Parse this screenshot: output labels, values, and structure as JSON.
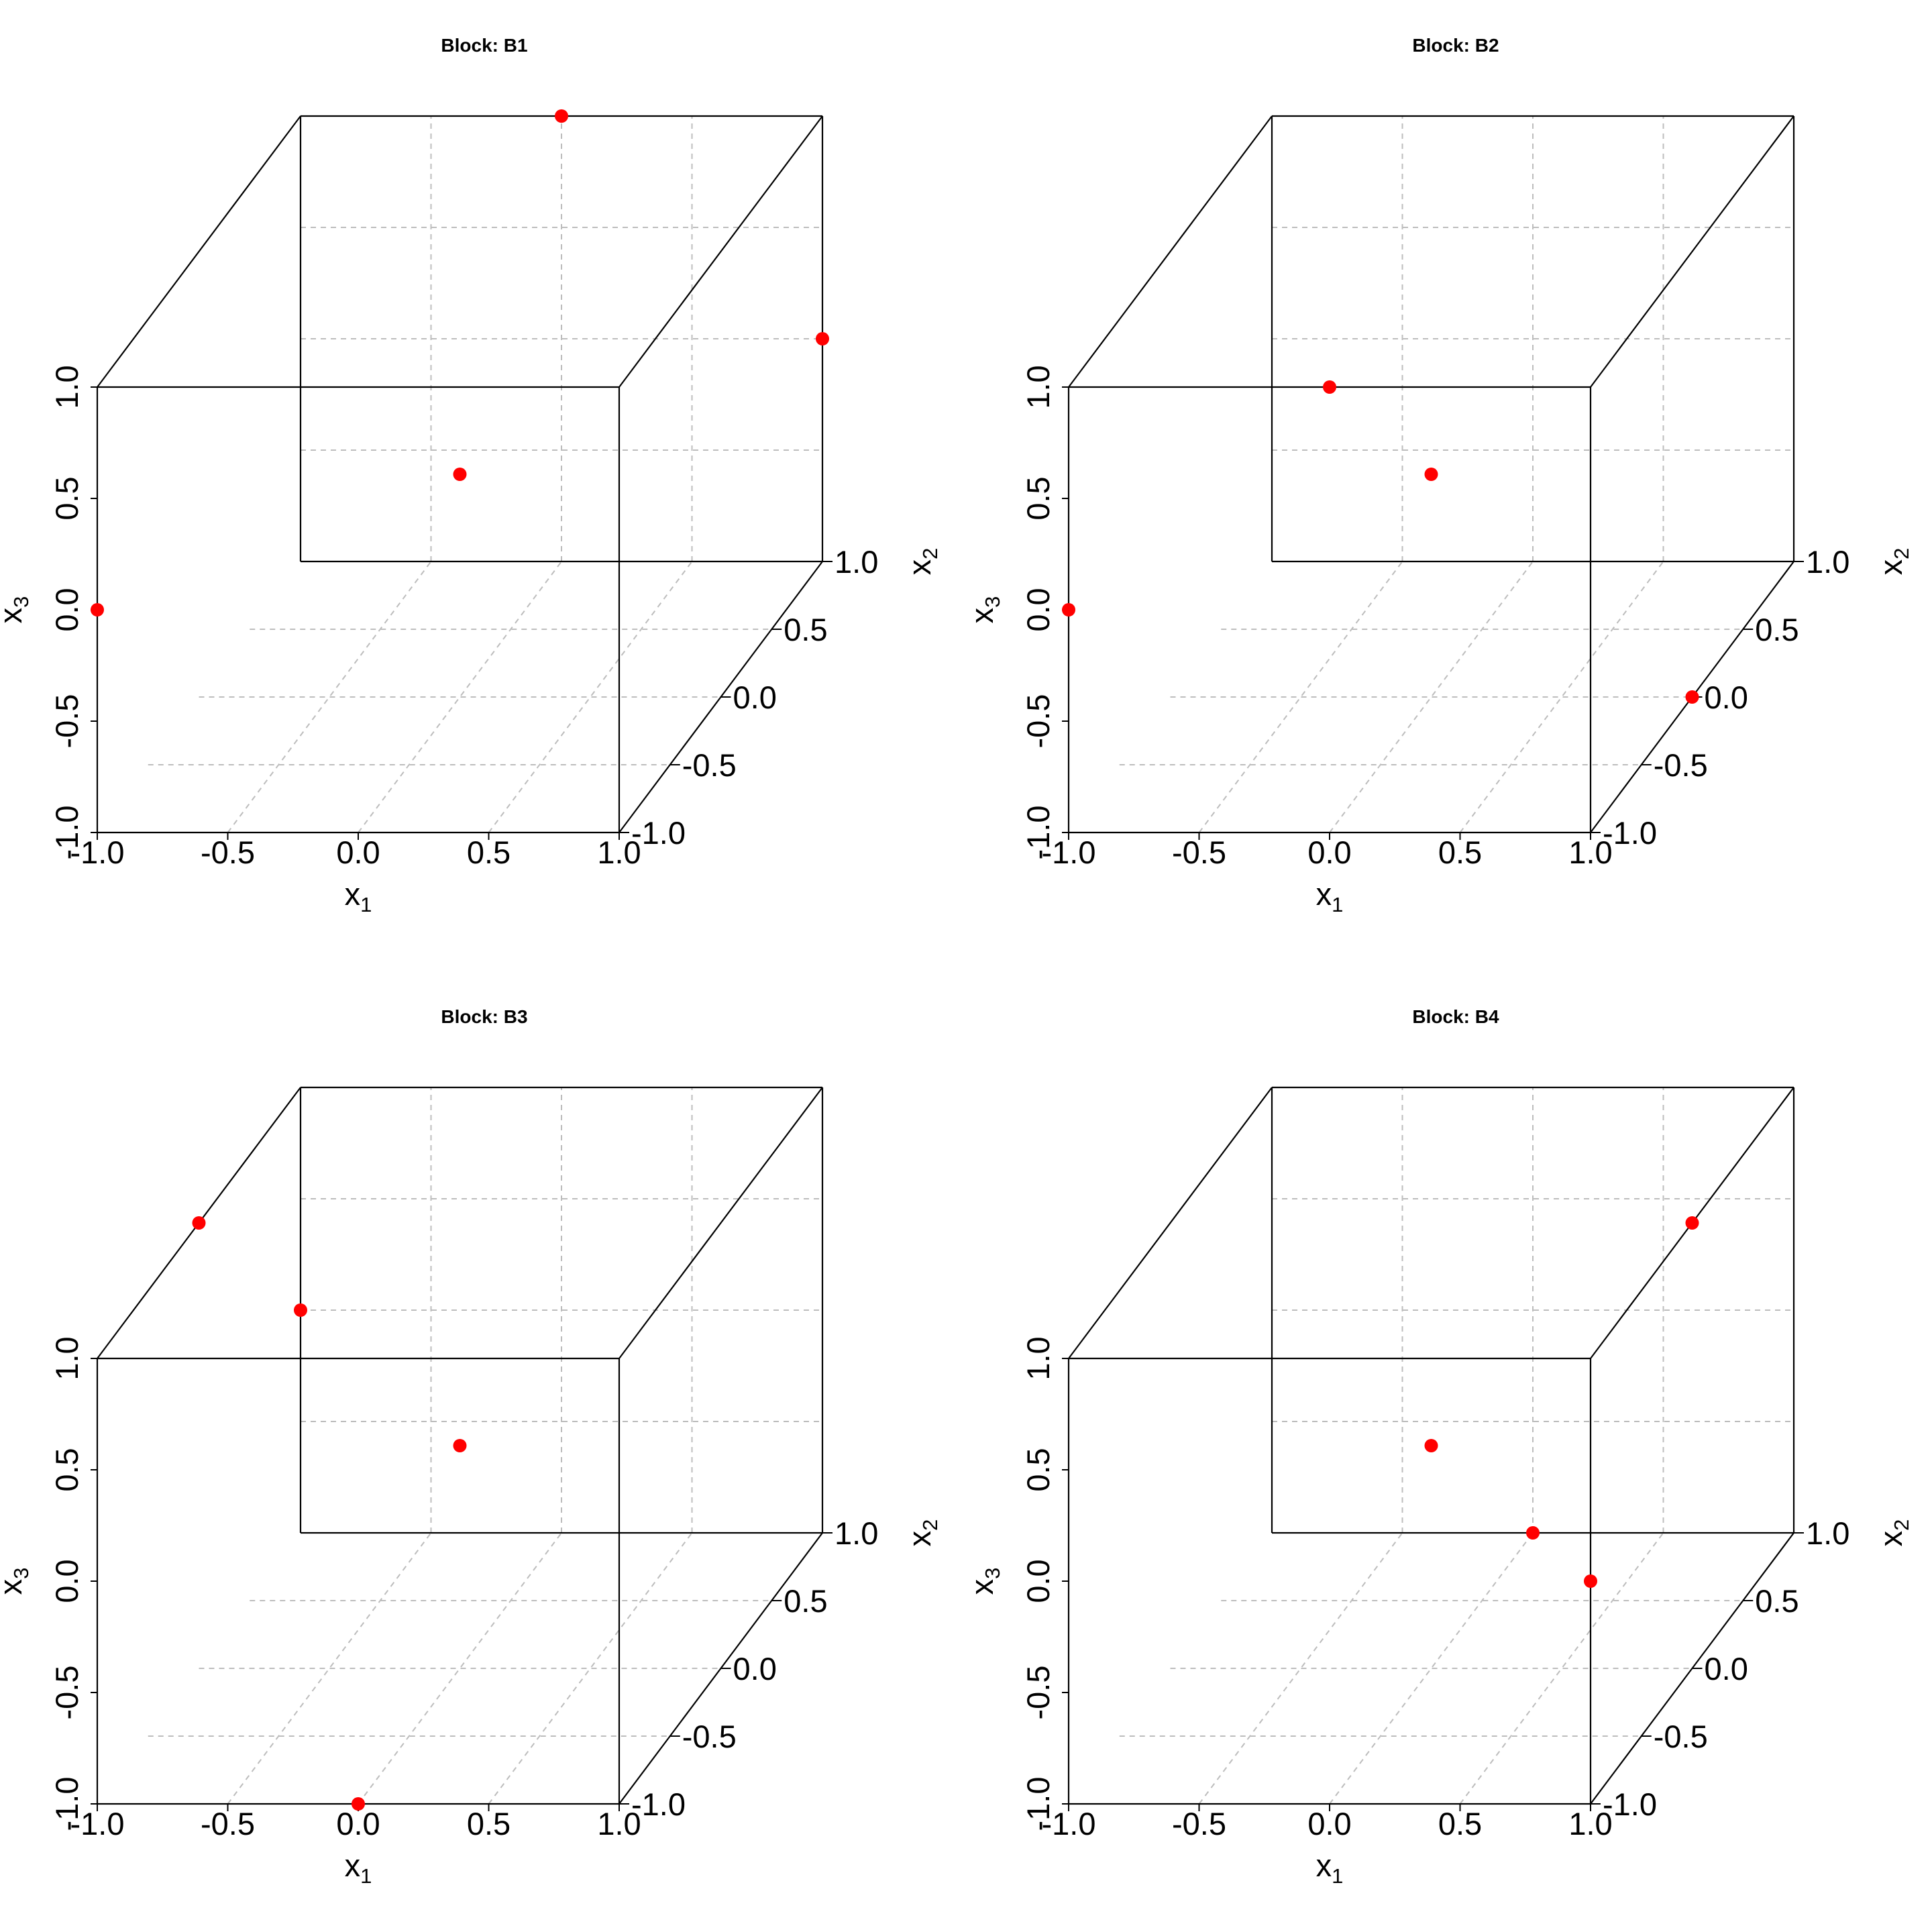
{
  "chart_data": [
    {
      "type": "scatter3d",
      "title": "Block: B1",
      "xlabel": "x1",
      "ylabel": "x2",
      "zlabel": "x3",
      "xlim": [
        -1,
        1
      ],
      "ylim": [
        -1,
        1
      ],
      "zlim": [
        -1,
        1
      ],
      "xticks": [
        "-1.0",
        "-0.5",
        "0.0",
        "0.5",
        "1.0"
      ],
      "yticks": [
        "-1.0",
        "-0.5",
        "0.0",
        "0.5",
        "1.0"
      ],
      "zticks": [
        "-1.0",
        "-0.5",
        "0.0",
        "0.5",
        "1.0"
      ],
      "grid": true,
      "point_color": "#ff0000",
      "points": [
        {
          "x": -1,
          "y": -1,
          "z": 0
        },
        {
          "x": 0,
          "y": 0,
          "z": 0
        },
        {
          "x": 1,
          "y": 1,
          "z": 0
        },
        {
          "x": 0,
          "y": 1,
          "z": 1
        }
      ]
    },
    {
      "type": "scatter3d",
      "title": "Block: B2",
      "xlabel": "x1",
      "ylabel": "x2",
      "zlabel": "x3",
      "xlim": [
        -1,
        1
      ],
      "ylim": [
        -1,
        1
      ],
      "zlim": [
        -1,
        1
      ],
      "xticks": [
        "-1.0",
        "-0.5",
        "0.0",
        "0.5",
        "1.0"
      ],
      "yticks": [
        "-1.0",
        "-0.5",
        "0.0",
        "0.5",
        "1.0"
      ],
      "zticks": [
        "-1.0",
        "-0.5",
        "0.0",
        "0.5",
        "1.0"
      ],
      "grid": true,
      "point_color": "#ff0000",
      "points": [
        {
          "x": -1,
          "y": -1,
          "z": 0
        },
        {
          "x": 0,
          "y": -1,
          "z": 1
        },
        {
          "x": 0,
          "y": 0,
          "z": 0
        },
        {
          "x": 1,
          "y": 0,
          "z": -1
        }
      ]
    },
    {
      "type": "scatter3d",
      "title": "Block: B3",
      "xlabel": "x1",
      "ylabel": "x2",
      "zlabel": "x3",
      "xlim": [
        -1,
        1
      ],
      "ylim": [
        -1,
        1
      ],
      "zlim": [
        -1,
        1
      ],
      "xticks": [
        "-1.0",
        "-0.5",
        "0.0",
        "0.5",
        "1.0"
      ],
      "yticks": [
        "-1.0",
        "-0.5",
        "0.0",
        "0.5",
        "1.0"
      ],
      "zticks": [
        "-1.0",
        "-0.5",
        "0.0",
        "0.5",
        "1.0"
      ],
      "grid": true,
      "point_color": "#ff0000",
      "points": [
        {
          "x": 0,
          "y": -1,
          "z": -1
        },
        {
          "x": 0,
          "y": 0,
          "z": 0
        },
        {
          "x": -1,
          "y": 0,
          "z": 1
        },
        {
          "x": -1,
          "y": 1,
          "z": 0
        }
      ]
    },
    {
      "type": "scatter3d",
      "title": "Block: B4",
      "xlabel": "x1",
      "ylabel": "x2",
      "zlabel": "x3",
      "xlim": [
        -1,
        1
      ],
      "ylim": [
        -1,
        1
      ],
      "zlim": [
        -1,
        1
      ],
      "xticks": [
        "-1.0",
        "-0.5",
        "0.0",
        "0.5",
        "1.0"
      ],
      "yticks": [
        "-1.0",
        "-0.5",
        "0.0",
        "0.5",
        "1.0"
      ],
      "zticks": [
        "-1.0",
        "-0.5",
        "0.0",
        "0.5",
        "1.0"
      ],
      "grid": true,
      "point_color": "#ff0000",
      "points": [
        {
          "x": 0,
          "y": 0,
          "z": 0
        },
        {
          "x": 1,
          "y": -1,
          "z": 0
        },
        {
          "x": 0,
          "y": 1,
          "z": -1
        },
        {
          "x": 1,
          "y": 0,
          "z": 1
        }
      ]
    }
  ]
}
